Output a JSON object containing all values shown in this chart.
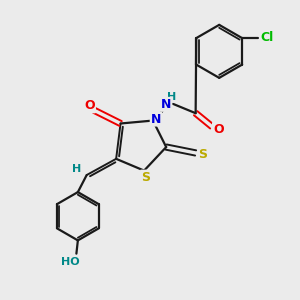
{
  "bg_color": "#ebebeb",
  "bond_color": "#1a1a1a",
  "atom_colors": {
    "N": "#0000dd",
    "O": "#ee0000",
    "S": "#bbaa00",
    "Cl": "#00bb00",
    "C": "#1a1a1a",
    "H": "#008888"
  },
  "figsize": [
    3.0,
    3.0
  ],
  "dpi": 100,
  "xlim": [
    0,
    10
  ],
  "ylim": [
    0,
    10
  ]
}
